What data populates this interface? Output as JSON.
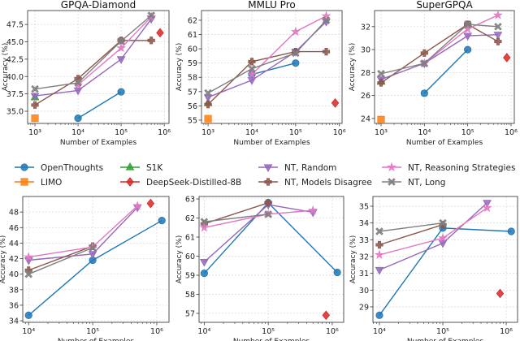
{
  "series_styles": {
    "OpenThoughts": {
      "color": "#1f77b4",
      "marker": "circle"
    },
    "LIMO": {
      "color": "#ff7f0e",
      "marker": "square"
    },
    "S1K": {
      "color": "#2ca02c",
      "marker": "triangle-up"
    },
    "DeepSeek-Distilled-8B": {
      "color": "#d62728",
      "marker": "diamond"
    },
    "NT, Random": {
      "color": "#9467bd",
      "marker": "triangle-down"
    },
    "NT, Models Disagree": {
      "color": "#8c564b",
      "marker": "plus"
    },
    "NT, Reasoning Strategies": {
      "color": "#e377c2",
      "marker": "star"
    },
    "NT, Long": {
      "color": "#7f7f7f",
      "marker": "x"
    }
  },
  "legend": {
    "placement": "center, between rows",
    "entries": [
      "OpenThoughts",
      "LIMO",
      "S1K",
      "DeepSeek-Distilled-8B",
      "NT, Random",
      "NT, Models Disagree",
      "NT, Reasoning Strategies",
      "NT, Long"
    ]
  },
  "chart_data": [
    {
      "type": "line",
      "title": "GPQA-Diamond",
      "xlabel": "Number of Examples",
      "ylabel": "Accuracy (%)",
      "xscale": "log",
      "xlim": [
        676,
        1290000
      ],
      "ylim": [
        33.25,
        49.5
      ],
      "grid": true,
      "xticks": [
        1000,
        10000,
        100000,
        1000000
      ],
      "xtick_labels": [
        "10³",
        "10⁴",
        "10⁵",
        "10⁶"
      ],
      "yticks": [
        35,
        37.5,
        40,
        42.5,
        45,
        47.5
      ],
      "ytick_labels": [
        "35.0",
        "37.5",
        "40.0",
        "42.5",
        "45.0",
        "47.5"
      ],
      "series": [
        {
          "name": "OpenThoughts",
          "x": [
            10000,
            100000
          ],
          "y": [
            34.0,
            37.8
          ]
        },
        {
          "name": "LIMO",
          "x": [
            1000
          ],
          "y": [
            34.0
          ]
        },
        {
          "name": "S1K",
          "x": [
            1000
          ],
          "y": [
            37.0
          ]
        },
        {
          "name": "DeepSeek-Distilled-8B",
          "x": [
            800000
          ],
          "y": [
            46.3
          ]
        },
        {
          "name": "NT, Random",
          "x": [
            1000,
            10000,
            100000,
            500000
          ],
          "y": [
            37.2,
            38.0,
            42.5,
            48.3
          ]
        },
        {
          "name": "NT, Models Disagree",
          "x": [
            1000,
            10000,
            100000,
            500000
          ],
          "y": [
            35.9,
            39.7,
            45.2,
            45.2
          ]
        },
        {
          "name": "NT, Reasoning Strategies",
          "x": [
            10000,
            100000,
            500000
          ],
          "y": [
            38.8,
            44.1,
            48.6
          ]
        },
        {
          "name": "NT, Long",
          "x": [
            1000,
            10000,
            100000,
            500000
          ],
          "y": [
            38.2,
            39.1,
            45.1,
            48.8
          ]
        }
      ]
    },
    {
      "type": "line",
      "title": "MMLU Pro",
      "xlabel": "Number of Examples",
      "ylabel": "Accuracy (%)",
      "xscale": "log",
      "xlim": [
        708,
        1150000
      ],
      "ylim": [
        54.77,
        62.68
      ],
      "grid": true,
      "xticks": [
        1000,
        10000,
        100000,
        1000000
      ],
      "xtick_labels": [
        "10³",
        "10⁴",
        "10⁵",
        "10⁶"
      ],
      "yticks": [
        55,
        56,
        57,
        58,
        59,
        60,
        61,
        62
      ],
      "ytick_labels": [
        "55",
        "56",
        "57",
        "58",
        "59",
        "60",
        "61",
        "62"
      ],
      "series": [
        {
          "name": "OpenThoughts",
          "x": [
            10000,
            100000
          ],
          "y": [
            58.2,
            59.0
          ]
        },
        {
          "name": "LIMO",
          "x": [
            1000
          ],
          "y": [
            55.1
          ]
        },
        {
          "name": "S1K",
          "x": [
            1000
          ],
          "y": [
            56.2
          ]
        },
        {
          "name": "DeepSeek-Distilled-8B",
          "x": [
            800000
          ],
          "y": [
            56.2
          ]
        },
        {
          "name": "NT, Random",
          "x": [
            1000,
            10000,
            100000,
            500000
          ],
          "y": [
            56.6,
            57.8,
            59.8,
            61.9
          ]
        },
        {
          "name": "NT, Models Disagree",
          "x": [
            1000,
            10000,
            100000,
            500000
          ],
          "y": [
            56.1,
            59.1,
            59.8,
            59.8
          ]
        },
        {
          "name": "NT, Reasoning Strategies",
          "x": [
            10000,
            100000,
            500000
          ],
          "y": [
            58.2,
            61.2,
            62.3
          ]
        },
        {
          "name": "NT, Long",
          "x": [
            1000,
            10000,
            100000,
            500000
          ],
          "y": [
            56.9,
            58.6,
            59.7,
            62.0
          ]
        }
      ]
    },
    {
      "type": "line",
      "title": "SuperGPQA",
      "xlabel": "Number of Examples",
      "ylabel": "Accuracy (%)",
      "xscale": "log",
      "xlim": [
        708,
        1190000
      ],
      "ylim": [
        23.57,
        33.4
      ],
      "grid": true,
      "xticks": [
        1000,
        10000,
        100000,
        1000000
      ],
      "xtick_labels": [
        "10³",
        "10⁴",
        "10⁵",
        "10⁶"
      ],
      "yticks": [
        24,
        26,
        28,
        30,
        32
      ],
      "ytick_labels": [
        "24",
        "26",
        "28",
        "30",
        "32"
      ],
      "series": [
        {
          "name": "OpenThoughts",
          "x": [
            10000,
            100000
          ],
          "y": [
            26.2,
            30.0
          ]
        },
        {
          "name": "LIMO",
          "x": [
            1000
          ],
          "y": [
            23.9
          ]
        },
        {
          "name": "S1K",
          "x": [
            1000
          ],
          "y": [
            27.2
          ]
        },
        {
          "name": "DeepSeek-Distilled-8B",
          "x": [
            800000
          ],
          "y": [
            29.3
          ]
        },
        {
          "name": "NT, Random",
          "x": [
            1000,
            10000,
            100000,
            500000
          ],
          "y": [
            27.4,
            28.8,
            31.2,
            31.3
          ]
        },
        {
          "name": "NT, Models Disagree",
          "x": [
            1000,
            10000,
            100000,
            500000
          ],
          "y": [
            27.1,
            29.7,
            32.2,
            30.7
          ]
        },
        {
          "name": "NT, Reasoning Strategies",
          "x": [
            10000,
            100000,
            500000
          ],
          "y": [
            28.8,
            31.8,
            33.0
          ]
        },
        {
          "name": "NT, Long",
          "x": [
            1000,
            10000,
            100000,
            500000
          ],
          "y": [
            27.9,
            28.8,
            32.2,
            32.0
          ]
        }
      ]
    },
    {
      "type": "line",
      "title": "",
      "xlabel": "Number of Examples",
      "ylabel": "Accuracy (%)",
      "xscale": "log",
      "xlim": [
        8100,
        1550000
      ],
      "ylim": [
        33.8,
        50.0
      ],
      "grid": true,
      "xticks": [
        10000,
        100000,
        1000000
      ],
      "xtick_labels": [
        "10⁴",
        "10⁵",
        "10⁶"
      ],
      "yticks": [
        34,
        36,
        38,
        40,
        42,
        44,
        46,
        48
      ],
      "ytick_labels": [
        "34",
        "36",
        "38",
        "40",
        "42",
        "44",
        "46",
        "48"
      ],
      "series": [
        {
          "name": "OpenThoughts",
          "x": [
            10000,
            100000,
            1200000
          ],
          "y": [
            34.7,
            41.8,
            46.9
          ]
        },
        {
          "name": "DeepSeek-Distilled-8B",
          "x": [
            800000
          ],
          "y": [
            49.1
          ]
        },
        {
          "name": "NT, Random",
          "x": [
            10000,
            100000,
            500000
          ],
          "y": [
            41.8,
            42.6,
            48.6
          ]
        },
        {
          "name": "NT, Models Disagree",
          "x": [
            10000,
            100000
          ],
          "y": [
            40.5,
            43.6
          ]
        },
        {
          "name": "NT, Reasoning Strategies",
          "x": [
            10000,
            100000,
            500000
          ],
          "y": [
            42.2,
            43.5,
            48.8
          ]
        },
        {
          "name": "NT, Long",
          "x": [
            10000,
            100000
          ],
          "y": [
            40.0,
            43.4
          ]
        }
      ]
    },
    {
      "type": "line",
      "title": "",
      "xlabel": "Number of Examples",
      "ylabel": "Accuracy (%)",
      "xscale": "log",
      "xlim": [
        8300,
        1510000
      ],
      "ylim": [
        56.53,
        63.13
      ],
      "grid": true,
      "xticks": [
        10000,
        100000,
        1000000
      ],
      "xtick_labels": [
        "10⁴",
        "10⁵",
        "10⁶"
      ],
      "yticks": [
        57,
        58,
        59,
        60,
        61,
        62,
        63
      ],
      "ytick_labels": [
        "57",
        "58",
        "59",
        "60",
        "61",
        "62",
        "63"
      ],
      "series": [
        {
          "name": "OpenThoughts",
          "x": [
            10000,
            100000,
            1200000
          ],
          "y": [
            59.1,
            62.8,
            59.15
          ]
        },
        {
          "name": "DeepSeek-Distilled-8B",
          "x": [
            800000
          ],
          "y": [
            56.9
          ]
        },
        {
          "name": "NT, Random",
          "x": [
            10000,
            100000,
            500000
          ],
          "y": [
            59.7,
            62.7,
            62.3
          ]
        },
        {
          "name": "NT, Models Disagree",
          "x": [
            10000,
            100000
          ],
          "y": [
            61.7,
            62.8
          ]
        },
        {
          "name": "NT, Reasoning Strategies",
          "x": [
            10000,
            100000,
            500000
          ],
          "y": [
            61.5,
            62.2,
            62.4
          ]
        },
        {
          "name": "NT, Long",
          "x": [
            10000,
            100000
          ],
          "y": [
            61.8,
            62.2
          ]
        }
      ]
    },
    {
      "type": "line",
      "title": "",
      "xlabel": "Number of Examples",
      "ylabel": "Accuracy (%)",
      "xscale": "log",
      "xlim": [
        7900,
        1510000
      ],
      "ylim": [
        28.08,
        35.58
      ],
      "grid": true,
      "xticks": [
        10000,
        100000,
        1000000
      ],
      "xtick_labels": [
        "10⁴",
        "10⁵",
        "10⁶"
      ],
      "yticks": [
        29,
        30,
        31,
        32,
        33,
        34,
        35
      ],
      "ytick_labels": [
        "29",
        "30",
        "31",
        "32",
        "33",
        "34",
        "35"
      ],
      "series": [
        {
          "name": "OpenThoughts",
          "x": [
            10000,
            100000,
            1200000
          ],
          "y": [
            28.5,
            33.7,
            33.5
          ]
        },
        {
          "name": "DeepSeek-Distilled-8B",
          "x": [
            800000
          ],
          "y": [
            29.8
          ]
        },
        {
          "name": "NT, Random",
          "x": [
            10000,
            100000,
            500000
          ],
          "y": [
            31.2,
            32.8,
            35.2
          ]
        },
        {
          "name": "NT, Models Disagree",
          "x": [
            10000,
            100000
          ],
          "y": [
            32.7,
            33.9
          ]
        },
        {
          "name": "NT, Reasoning Strategies",
          "x": [
            10000,
            100000,
            500000
          ],
          "y": [
            32.1,
            33.1,
            34.9
          ]
        },
        {
          "name": "NT, Long",
          "x": [
            10000,
            100000
          ],
          "y": [
            33.5,
            34.0
          ]
        }
      ]
    }
  ]
}
